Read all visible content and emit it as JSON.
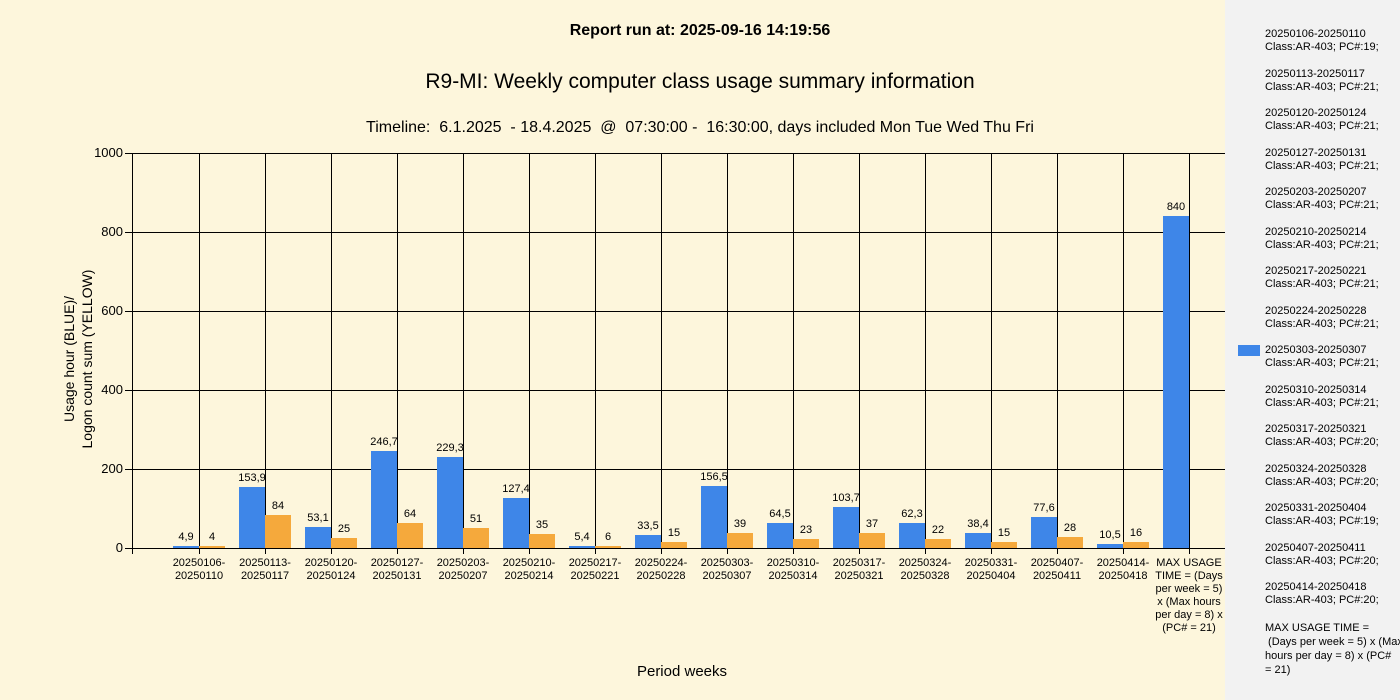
{
  "colors": {
    "background": "#FDF6DC",
    "legend_panel": "#F2F2F2",
    "blue": "#3E86E8",
    "orange": "#F5A93C",
    "grid": "#000000",
    "text": "#000000"
  },
  "chart_data": {
    "type": "bar",
    "annotation": "Report run at: 2025-09-16 14:19:56",
    "title": "R9-MI: Weekly computer class usage summary information",
    "subtitle": "Timeline:  6.1.2025  - 18.4.2025  @  07:30:00 -  16:30:00, days included Mon Tue Wed Thu Fri",
    "xlabel": "Period weeks",
    "ylabel": "Usage hour (BLUE)/\nLogon count sum (YELLOW)",
    "ylim": [
      0,
      1000
    ],
    "yticks": [
      0,
      200,
      400,
      600,
      800,
      1000
    ],
    "grid": true,
    "legend_position": "right",
    "decimal_separator": ",",
    "categories": [
      "20250106-20250110",
      "20250113-20250117",
      "20250120-20250124",
      "20250127-20250131",
      "20250203-20250207",
      "20250210-20250214",
      "20250217-20250221",
      "20250224-20250228",
      "20250303-20250307",
      "20250310-20250314",
      "20250317-20250321",
      "20250324-20250328",
      "20250331-20250404",
      "20250407-20250411",
      "20250414-20250418",
      "MAX USAGE TIME = (Days per week = 5) x (Max hours per day = 8) x (PC# = 21)"
    ],
    "series": [
      {
        "name": "Usage hour (BLUE)",
        "color": "#3E86E8",
        "values": [
          4.9,
          153.9,
          53.1,
          246.7,
          229.3,
          127.4,
          5.4,
          33.5,
          156.5,
          64.5,
          103.7,
          62.3,
          38.4,
          77.6,
          10.5,
          840
        ]
      },
      {
        "name": "Logon count sum (YELLOW)",
        "color": "#F5A93C",
        "values": [
          4,
          84,
          25,
          64,
          51,
          35,
          6,
          15,
          39,
          23,
          37,
          22,
          15,
          28,
          16,
          null
        ]
      }
    ]
  },
  "legend": {
    "swatch_color": "#3E86E8",
    "entries": [
      {
        "range": "20250106-20250110",
        "detail": "Class:AR-403; PC#:19;",
        "swatch": false
      },
      {
        "range": "20250113-20250117",
        "detail": "Class:AR-403; PC#:21;",
        "swatch": false
      },
      {
        "range": "20250120-20250124",
        "detail": "Class:AR-403; PC#:21;",
        "swatch": false
      },
      {
        "range": "20250127-20250131",
        "detail": "Class:AR-403; PC#:21;",
        "swatch": false
      },
      {
        "range": "20250203-20250207",
        "detail": "Class:AR-403; PC#:21;",
        "swatch": false
      },
      {
        "range": "20250210-20250214",
        "detail": "Class:AR-403; PC#:21;",
        "swatch": false
      },
      {
        "range": "20250217-20250221",
        "detail": "Class:AR-403; PC#:21;",
        "swatch": false
      },
      {
        "range": "20250224-20250228",
        "detail": "Class:AR-403; PC#:21;",
        "swatch": false
      },
      {
        "range": "20250303-20250307",
        "detail": "Class:AR-403; PC#:21;",
        "swatch": true
      },
      {
        "range": "20250310-20250314",
        "detail": "Class:AR-403; PC#:21;",
        "swatch": false
      },
      {
        "range": "20250317-20250321",
        "detail": "Class:AR-403; PC#:20;",
        "swatch": false
      },
      {
        "range": "20250324-20250328",
        "detail": "Class:AR-403; PC#:20;",
        "swatch": false
      },
      {
        "range": "20250331-20250404",
        "detail": "Class:AR-403; PC#:19;",
        "swatch": false
      },
      {
        "range": "20250407-20250411",
        "detail": "Class:AR-403; PC#:20;",
        "swatch": false
      },
      {
        "range": "20250414-20250418",
        "detail": "Class:AR-403; PC#:20;",
        "swatch": false
      }
    ],
    "footer": "MAX USAGE TIME =\n (Days per week = 5) x (Max\nhours per day = 8) x (PC#\n= 21)"
  }
}
